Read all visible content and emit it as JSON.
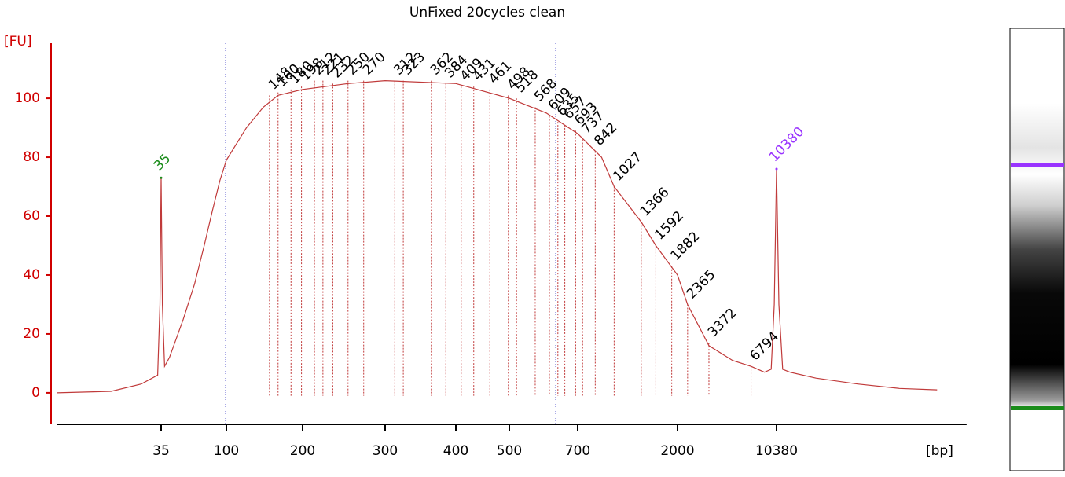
{
  "chart_data": {
    "type": "line",
    "title": "UnFixed 20cycles clean",
    "y_label": "[FU]",
    "x_label": "[bp]",
    "color": "#c03a3a",
    "axis_color": "#d00000",
    "ylim": [
      -10.7,
      118.7
    ],
    "yticks": [
      0,
      20,
      40,
      60,
      80,
      100
    ],
    "xlim": [
      6,
      245000
    ],
    "xticks": [
      35,
      100,
      200,
      300,
      400,
      500,
      700,
      2000,
      10380
    ],
    "log_like_x": true,
    "grid": false,
    "x": [
      6,
      15,
      25,
      33,
      34.3,
      35,
      35.7,
      37,
      40,
      50,
      60,
      70,
      80,
      90,
      100,
      120,
      140,
      160,
      200,
      250,
      300,
      400,
      500,
      600,
      700,
      900,
      1027,
      1366,
      1592,
      2000,
      2365,
      3372,
      5000,
      6794,
      8500,
      9500,
      10000,
      10380,
      10800,
      11500,
      13000,
      20000,
      40000,
      80000,
      150000
    ],
    "values": [
      0,
      0.5,
      3,
      6,
      30,
      73,
      30,
      9,
      12,
      25,
      37,
      50,
      62,
      72,
      79,
      90,
      97,
      101,
      103,
      105,
      106,
      105,
      100,
      95,
      88,
      80,
      70,
      58,
      50,
      40,
      30,
      16,
      11,
      9,
      7,
      8,
      30,
      76,
      30,
      8,
      7,
      5,
      3,
      1.5,
      1
    ],
    "peaks": {
      "x": [
        148,
        160,
        180,
        198,
        212,
        221,
        232,
        250,
        270,
        312,
        323,
        362,
        384,
        409,
        431,
        461,
        498,
        518,
        568,
        609,
        635,
        657,
        693,
        737,
        842,
        1027,
        1366,
        1592,
        1882,
        2365,
        3372,
        6794
      ],
      "values": [
        101,
        102,
        103,
        104,
        106,
        106,
        105,
        106,
        106,
        106,
        106,
        106,
        105,
        104,
        104,
        103,
        101,
        100,
        97,
        94,
        92,
        91,
        89,
        86,
        82,
        70,
        58,
        50,
        43,
        30,
        17,
        9
      ]
    },
    "markers": [
      {
        "x": 35,
        "value": 73,
        "color": "#1a8c1a"
      },
      {
        "x": 10380,
        "value": 76,
        "color": "#9933ff"
      }
    ]
  }
}
